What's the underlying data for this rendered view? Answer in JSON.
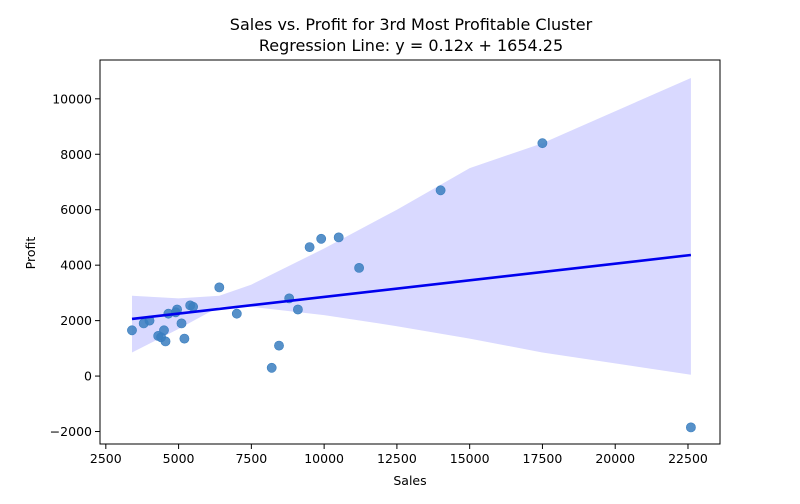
{
  "chart_data": {
    "type": "scatter",
    "title": "Sales vs. Profit for 3rd Most Profitable Cluster",
    "subtitle": "Regression Line: y = 0.12x + 1654.25",
    "xlabel": "Sales",
    "ylabel": "Profit",
    "xlim": [
      2300,
      23600
    ],
    "ylim": [
      -2450,
      11400
    ],
    "x_ticks": [
      2500,
      5000,
      7500,
      10000,
      12500,
      15000,
      17500,
      20000,
      22500
    ],
    "y_ticks": [
      -2000,
      0,
      2000,
      4000,
      6000,
      8000,
      10000
    ],
    "grid": false,
    "points": [
      {
        "x": 3400,
        "y": 1650
      },
      {
        "x": 3800,
        "y": 1900
      },
      {
        "x": 4000,
        "y": 2000
      },
      {
        "x": 4300,
        "y": 1450
      },
      {
        "x": 4400,
        "y": 1400
      },
      {
        "x": 4500,
        "y": 1650
      },
      {
        "x": 4550,
        "y": 1250
      },
      {
        "x": 4650,
        "y": 2250
      },
      {
        "x": 4900,
        "y": 2300
      },
      {
        "x": 4950,
        "y": 2400
      },
      {
        "x": 5100,
        "y": 1900
      },
      {
        "x": 5200,
        "y": 1350
      },
      {
        "x": 5400,
        "y": 2550
      },
      {
        "x": 5500,
        "y": 2500
      },
      {
        "x": 6400,
        "y": 3200
      },
      {
        "x": 7000,
        "y": 2250
      },
      {
        "x": 8200,
        "y": 300
      },
      {
        "x": 8450,
        "y": 1100
      },
      {
        "x": 8800,
        "y": 2800
      },
      {
        "x": 9100,
        "y": 2400
      },
      {
        "x": 9500,
        "y": 4650
      },
      {
        "x": 9900,
        "y": 4950
      },
      {
        "x": 10500,
        "y": 5000
      },
      {
        "x": 11200,
        "y": 3900
      },
      {
        "x": 14000,
        "y": 6700
      },
      {
        "x": 17500,
        "y": 8400
      },
      {
        "x": 22600,
        "y": -1850
      }
    ],
    "regression": {
      "slope": 0.12,
      "intercept": 1654.25,
      "x_range": [
        3400,
        22600
      ]
    },
    "confidence_band": {
      "upper": [
        {
          "x": 3400,
          "y": 2900
        },
        {
          "x": 5000,
          "y": 2800
        },
        {
          "x": 6400,
          "y": 2900
        },
        {
          "x": 7500,
          "y": 3300
        },
        {
          "x": 10000,
          "y": 4600
        },
        {
          "x": 12500,
          "y": 6000
        },
        {
          "x": 15000,
          "y": 7500
        },
        {
          "x": 17500,
          "y": 8400
        },
        {
          "x": 22600,
          "y": 10750
        }
      ],
      "lower": [
        {
          "x": 3400,
          "y": 850
        },
        {
          "x": 5000,
          "y": 1700
        },
        {
          "x": 6400,
          "y": 2500
        },
        {
          "x": 7500,
          "y": 2500
        },
        {
          "x": 10000,
          "y": 2200
        },
        {
          "x": 12500,
          "y": 1800
        },
        {
          "x": 15000,
          "y": 1350
        },
        {
          "x": 17500,
          "y": 850
        },
        {
          "x": 22600,
          "y": 50
        }
      ]
    },
    "colors": {
      "points": "#3a7ebf",
      "line": "#0000ee",
      "band": "#d9d9ff"
    }
  }
}
